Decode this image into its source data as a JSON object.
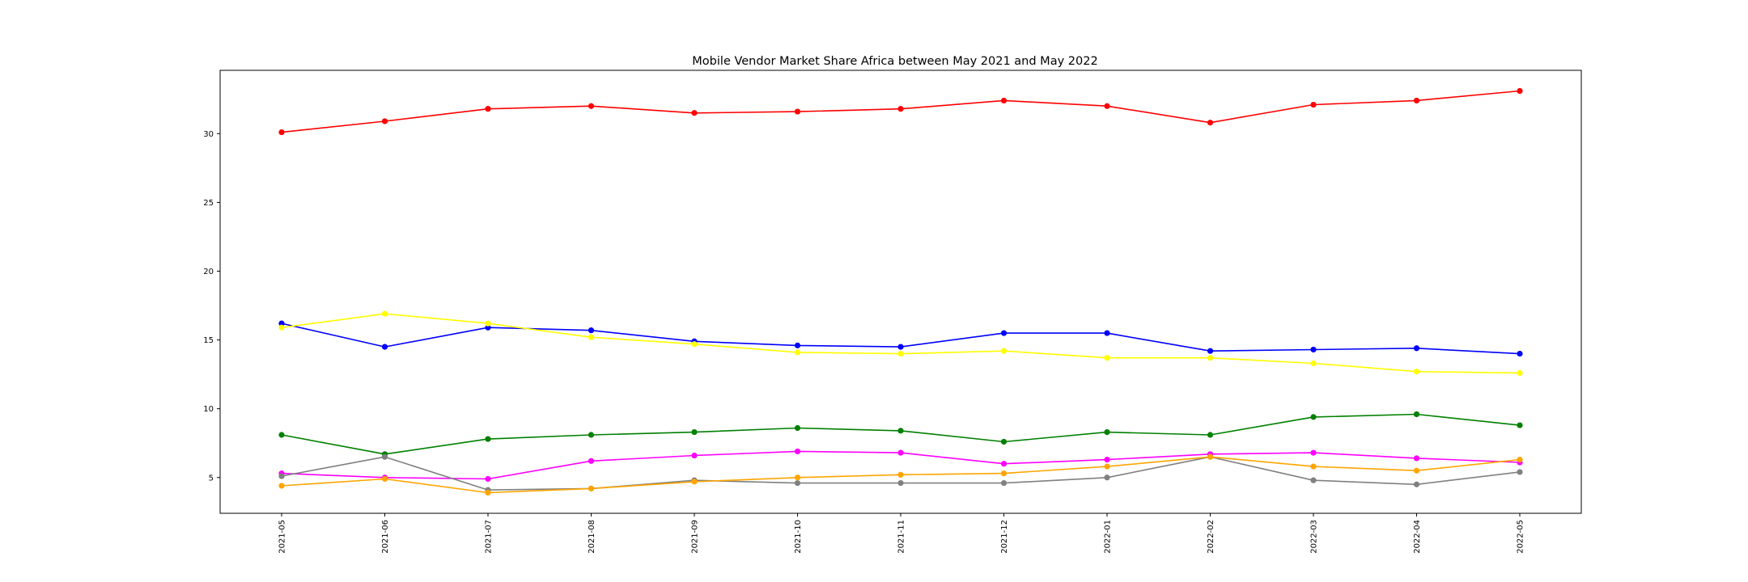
{
  "chart_data": {
    "type": "line",
    "title": "Mobile Vendor Market Share Africa between May 2021 and May 2022",
    "xlabel": "",
    "ylabel": "",
    "x": [
      "2021-05",
      "2021-06",
      "2021-07",
      "2021-08",
      "2021-09",
      "2021-10",
      "2021-11",
      "2021-12",
      "2022-01",
      "2022-02",
      "2022-03",
      "2022-04",
      "2022-05"
    ],
    "ylim": [
      2.4,
      34.6
    ],
    "yticks": [
      5,
      10,
      15,
      20,
      25,
      30
    ],
    "grid": false,
    "legend": "none",
    "series": [
      {
        "color": "#ff0000",
        "values": [
          30.1,
          30.9,
          31.8,
          32.0,
          31.5,
          31.6,
          31.8,
          32.4,
          32.0,
          30.8,
          32.1,
          32.4,
          33.1
        ]
      },
      {
        "color": "#0000ff",
        "values": [
          16.2,
          14.5,
          15.9,
          15.7,
          14.9,
          14.6,
          14.5,
          15.5,
          15.5,
          14.2,
          14.3,
          14.4,
          14.0
        ]
      },
      {
        "color": "#ffff00",
        "values": [
          15.9,
          16.9,
          16.2,
          15.2,
          14.7,
          14.1,
          14.0,
          14.2,
          13.7,
          13.7,
          13.3,
          12.7,
          12.6
        ]
      },
      {
        "color": "#008000",
        "values": [
          8.1,
          6.7,
          7.8,
          8.1,
          8.3,
          8.6,
          8.4,
          7.6,
          8.3,
          8.1,
          9.4,
          9.6,
          8.8
        ]
      },
      {
        "color": "#ff00ff",
        "values": [
          5.3,
          5.0,
          4.9,
          6.2,
          6.6,
          6.9,
          6.8,
          6.0,
          6.3,
          6.7,
          6.8,
          6.4,
          6.1
        ]
      },
      {
        "color": "#808080",
        "values": [
          5.1,
          6.5,
          4.1,
          4.2,
          4.8,
          4.6,
          4.6,
          4.6,
          5.0,
          6.5,
          4.8,
          4.5,
          5.4
        ]
      },
      {
        "color": "#ffa500",
        "values": [
          4.4,
          4.9,
          3.9,
          4.2,
          4.7,
          5.0,
          5.2,
          5.3,
          5.8,
          6.5,
          5.8,
          5.5,
          6.3
        ]
      }
    ]
  }
}
